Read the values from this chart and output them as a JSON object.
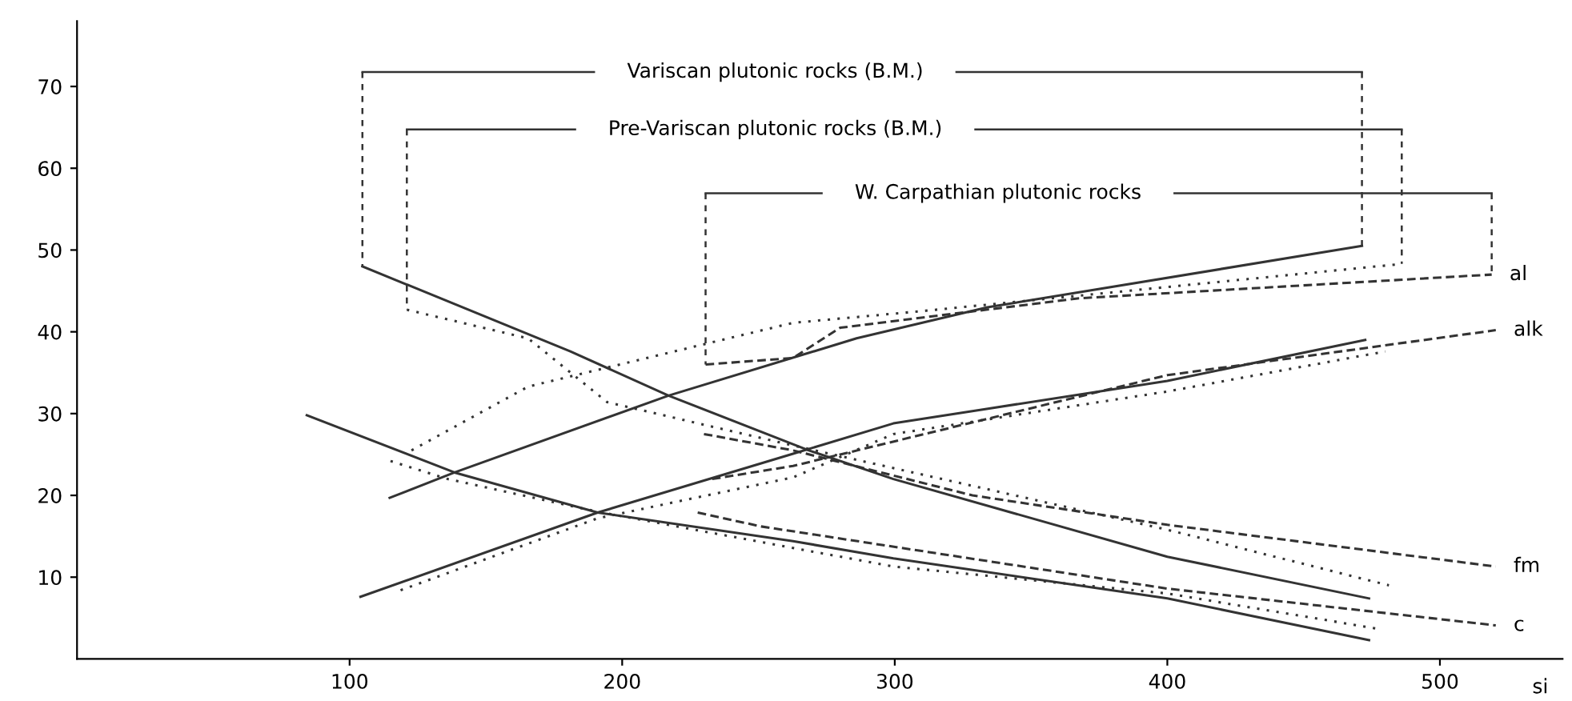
{
  "chart_data": {
    "type": "line",
    "xlabel": "si",
    "xlim": [
      0,
      545
    ],
    "ylim": [
      0,
      78
    ],
    "xticks": [
      100,
      200,
      300,
      400,
      500
    ],
    "yticks": [
      10,
      20,
      30,
      40,
      50,
      60,
      70
    ],
    "grid": false,
    "legend": false,
    "marker": "none",
    "annotations": [
      "Variscan plutonic rocks (B.M.)",
      "Pre-Variscan plutonic rocks (B.M.)",
      "W. Carpathian plutonic rocks"
    ],
    "series": [
      {
        "color": "#333333",
        "line_style": "solid",
        "x": [
          104.7,
          181,
          217,
          268.5,
          299.5,
          400,
          474
        ],
        "values": [
          48,
          37.6,
          32.2,
          25.5,
          22,
          12.5,
          7.4
        ]
      },
      {
        "color": "#333333",
        "line_style": "solid",
        "x": [
          114.7,
          138.5,
          217,
          286,
          334,
          471.4
        ],
        "values": [
          19.7,
          22.8,
          32.2,
          39.2,
          43,
          50.5
        ]
      },
      {
        "color": "#333333",
        "line_style": "solid",
        "x": [
          84.3,
          138.5,
          191,
          262.7,
          299.5,
          400,
          474
        ],
        "values": [
          29.8,
          22.8,
          17.9,
          14.4,
          12.3,
          7.4,
          2.3
        ]
      },
      {
        "color": "#333333",
        "line_style": "solid",
        "x": [
          104,
          191,
          262.7,
          299.5,
          400,
          472.6
        ],
        "values": [
          7.6,
          17.9,
          25.1,
          28.8,
          34,
          39
        ]
      },
      {
        "color": "#333333",
        "line_style": "dotted",
        "x": [
          121,
          165.5,
          194.5,
          262.7,
          400,
          481.3
        ],
        "values": [
          42.7,
          39.2,
          31.4,
          26.1,
          15.8,
          9
        ]
      },
      {
        "color": "#333333",
        "line_style": "dotted",
        "x": [
          122.7,
          165.5,
          262.7,
          309,
          486
        ],
        "values": [
          25.5,
          33.3,
          41.1,
          42.5,
          48.3
        ]
      },
      {
        "color": "#333333",
        "line_style": "dotted",
        "x": [
          115,
          136,
          191,
          299.5,
          400,
          477
        ],
        "values": [
          24.2,
          22,
          18,
          11.3,
          8,
          3.7
        ]
      },
      {
        "color": "#333333",
        "line_style": "dotted",
        "x": [
          118.7,
          191,
          262.7,
          299.5,
          400,
          480
        ],
        "values": [
          8.4,
          17.2,
          22.2,
          27.5,
          32.7,
          37.6
        ]
      },
      {
        "name": "al",
        "color": "#333333",
        "line_style": "dashed",
        "x": [
          230.6,
          262.7,
          280,
          367.6,
          519
        ],
        "values": [
          36,
          36.8,
          40.5,
          44.1,
          47
        ]
      },
      {
        "name": "alk",
        "color": "#333333",
        "line_style": "dashed",
        "x": [
          233,
          262.7,
          400,
          520.5
        ],
        "values": [
          22,
          23.6,
          34.7,
          40.2
        ]
      },
      {
        "name": "fm",
        "color": "#333333",
        "line_style": "dashed",
        "x": [
          230,
          262.7,
          328.5,
          400,
          520.5
        ],
        "values": [
          27.5,
          25.5,
          20,
          16.4,
          11.3
        ]
      },
      {
        "name": "c",
        "color": "#333333",
        "line_style": "dashed",
        "x": [
          227.7,
          251,
          400,
          520.5
        ],
        "values": [
          17.9,
          16.2,
          8.6,
          4.1
        ]
      }
    ]
  }
}
